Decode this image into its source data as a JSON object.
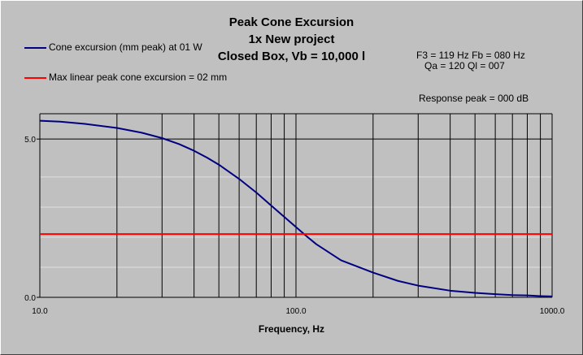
{
  "title_lines": [
    "Peak Cone Excursion",
    "1x New project",
    "Closed Box, Vb = 10,000 l"
  ],
  "legend": [
    {
      "label": "Cone excursion (mm peak) at 01 W",
      "color": "#000080"
    },
    {
      "label": "Max linear peak cone excursion = 02 mm",
      "color": "#ff0000"
    }
  ],
  "params": {
    "line1": "F3 = 119 Hz  Fb = 080 Hz",
    "line2": "Qa = 120  Ql = 007",
    "line3": "Response peak = 000 dB"
  },
  "chart_data": {
    "type": "line",
    "xscale": "log",
    "xlim": [
      10,
      1000
    ],
    "ylim": [
      0,
      5.8
    ],
    "xlabel": "Frequency, Hz",
    "ylabel": "",
    "x_tick_labels": [
      "10.0",
      "100.0",
      "1000.0"
    ],
    "y_tick_labels": [
      "5.0",
      "0.0"
    ],
    "y_ticks": [
      5.0,
      0.0
    ],
    "grid": true,
    "series": [
      {
        "name": "Cone excursion (mm peak) at 01 W",
        "color": "#000080",
        "x": [
          10,
          12,
          15,
          20,
          25,
          30,
          35,
          40,
          45,
          50,
          60,
          70,
          80,
          90,
          100,
          110,
          120,
          150,
          200,
          250,
          300,
          400,
          500,
          600,
          700,
          800,
          900,
          1000
        ],
        "y": [
          5.58,
          5.55,
          5.48,
          5.35,
          5.2,
          5.03,
          4.84,
          4.63,
          4.41,
          4.19,
          3.74,
          3.31,
          2.9,
          2.54,
          2.22,
          1.93,
          1.68,
          1.17,
          0.78,
          0.52,
          0.37,
          0.21,
          0.14,
          0.1,
          0.07,
          0.06,
          0.04,
          0.03
        ]
      },
      {
        "name": "Max linear peak cone excursion = 02 mm",
        "color": "#ff0000",
        "x": [
          10,
          1000
        ],
        "y": [
          2,
          2
        ]
      }
    ]
  }
}
